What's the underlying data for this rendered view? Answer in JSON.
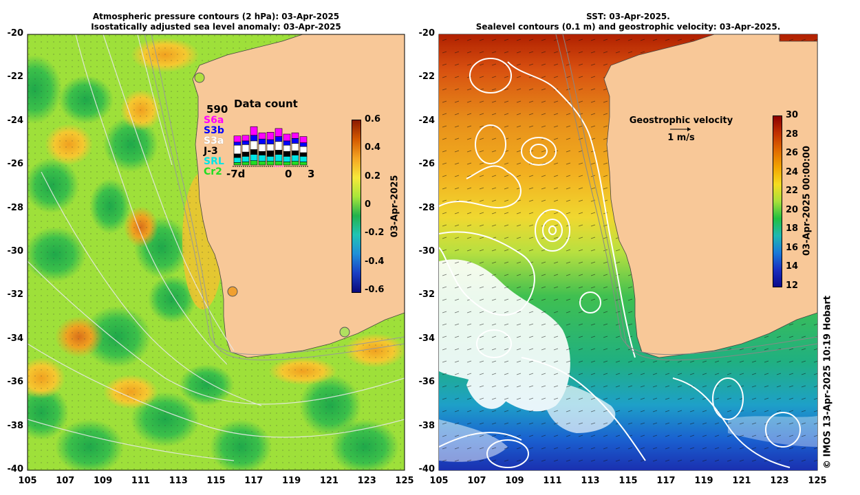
{
  "left_panel": {
    "title_line1": "Atmospheric pressure contours (2 hPa): 03-Apr-2025",
    "title_line2": "Isostatically adjusted sea level anomaly: 03-Apr-2025",
    "colorbar": {
      "label": "03-Apr-2025",
      "ticks": [
        "0.6",
        "0.4",
        "0.2",
        "0",
        "-0.2",
        "-0.4",
        "-0.6"
      ],
      "colors": [
        "#8b1a00",
        "#d45a00",
        "#f5a623",
        "#f7e83a",
        "#a8e63a",
        "#22b14c",
        "#21c4b4",
        "#1f8fd8",
        "#1a3fc4",
        "#0a0a7a"
      ]
    },
    "data_count": {
      "title": "Data count",
      "max_value": "590",
      "missions": [
        {
          "name": "S6a",
          "color": "#ff00ff"
        },
        {
          "name": "S3b",
          "color": "#0000ff"
        },
        {
          "name": "S3a",
          "color": "#ffffff"
        },
        {
          "name": "J-3",
          "color": "#000000"
        },
        {
          "name": "SRL",
          "color": "#00e5e5"
        },
        {
          "name": "Cr2",
          "color": "#22dd22"
        }
      ],
      "axis_labels": [
        "-7d",
        "0",
        "3"
      ]
    }
  },
  "right_panel": {
    "title_line1": "SST: 03-Apr-2025.",
    "title_line2": "Sealevel contours (0.1 m) and geostrophic velocity: 03-Apr-2025.",
    "colorbar": {
      "label": "03-Apr-2025 00:00:00",
      "ticks": [
        "30",
        "28",
        "26",
        "24",
        "22",
        "20",
        "18",
        "16",
        "14",
        "12"
      ],
      "colors": [
        "#8b0000",
        "#c23000",
        "#e06a00",
        "#f2a400",
        "#f5dc20",
        "#a8e03a",
        "#22c040",
        "#1fb8b0",
        "#1a7ad8",
        "#1a2fc0",
        "#0a0a8a"
      ]
    },
    "velocity_legend": {
      "title": "Geostrophic velocity",
      "scale": "1 m/s"
    }
  },
  "lat_ticks": [
    "-20",
    "-22",
    "-24",
    "-26",
    "-28",
    "-30",
    "-32",
    "-34",
    "-36",
    "-38",
    "-40"
  ],
  "lon_ticks": [
    "105",
    "107",
    "109",
    "111",
    "113",
    "115",
    "117",
    "119",
    "121",
    "123",
    "125"
  ],
  "credit": "© IMOS 13-Apr-2025 10:19 Hobart"
}
